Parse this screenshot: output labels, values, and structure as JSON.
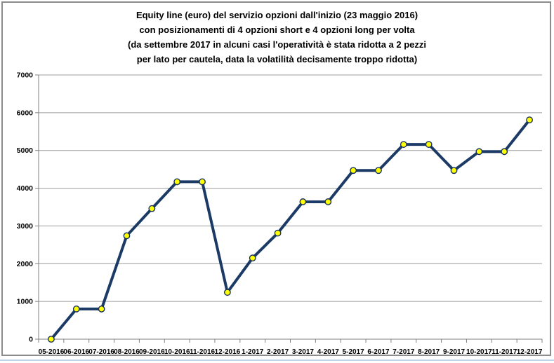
{
  "chart_data": {
    "type": "line",
    "title_lines": [
      "Equity line (euro) del servizio opzioni dall'inizio (23 maggio 2016)",
      "con posizionamenti di 4 opzioni short e 4 opzioni long per volta",
      "(da settembre 2017 in alcuni casi l'operatività è stata ridotta a 2 pezzi",
      "per lato per cautela, data la volatilità decisamente troppo ridotta)"
    ],
    "categories": [
      "05-2016",
      "06-2016",
      "07-2016",
      "08-2016",
      "09-2016",
      "10-2016",
      "11-2016",
      "12-2016",
      "1-2017",
      "2-2017",
      "3-2017",
      "4-2017",
      "5-2017",
      "6-2017",
      "7-2017",
      "8-2017",
      "9-2017",
      "10-2017",
      "11-2017",
      "12-2017"
    ],
    "values": [
      0,
      800,
      800,
      2740,
      3460,
      4170,
      4170,
      1240,
      2150,
      2810,
      3640,
      3640,
      4470,
      4470,
      5160,
      5160,
      4470,
      4970,
      4970,
      5810
    ],
    "xlabel": "",
    "ylabel": "",
    "ylim": [
      0,
      7000
    ],
    "yticks": [
      0,
      1000,
      2000,
      3000,
      4000,
      5000,
      6000,
      7000
    ],
    "grid": "horizontal",
    "legend": "none",
    "colors": {
      "line": "#1b3a66",
      "marker_fill": "#ffff00",
      "marker_stroke": "#16305a",
      "gridline": "#9c9c9c",
      "axis": "#7f7f7f",
      "label": "#000000",
      "frame_border": "#8c8c8c",
      "bottom_rule": "#bfd5ea",
      "background": "#ffffff"
    }
  }
}
